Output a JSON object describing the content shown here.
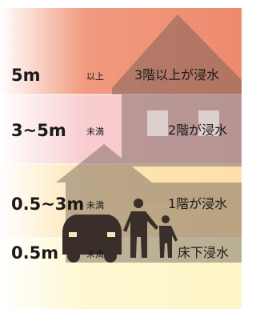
{
  "rows": [
    {
      "depth": "5m",
      "qualifier": "以上",
      "description": "3階以上が浸水"
    },
    {
      "depth": "3~5m",
      "qualifier": "未満",
      "description": "2階が浸水"
    },
    {
      "depth": "0.5~3m",
      "qualifier": "未満",
      "description": "1階が浸水"
    },
    {
      "depth": "0.5m",
      "qualifier": "未満",
      "description": "床下浸水"
    }
  ]
}
